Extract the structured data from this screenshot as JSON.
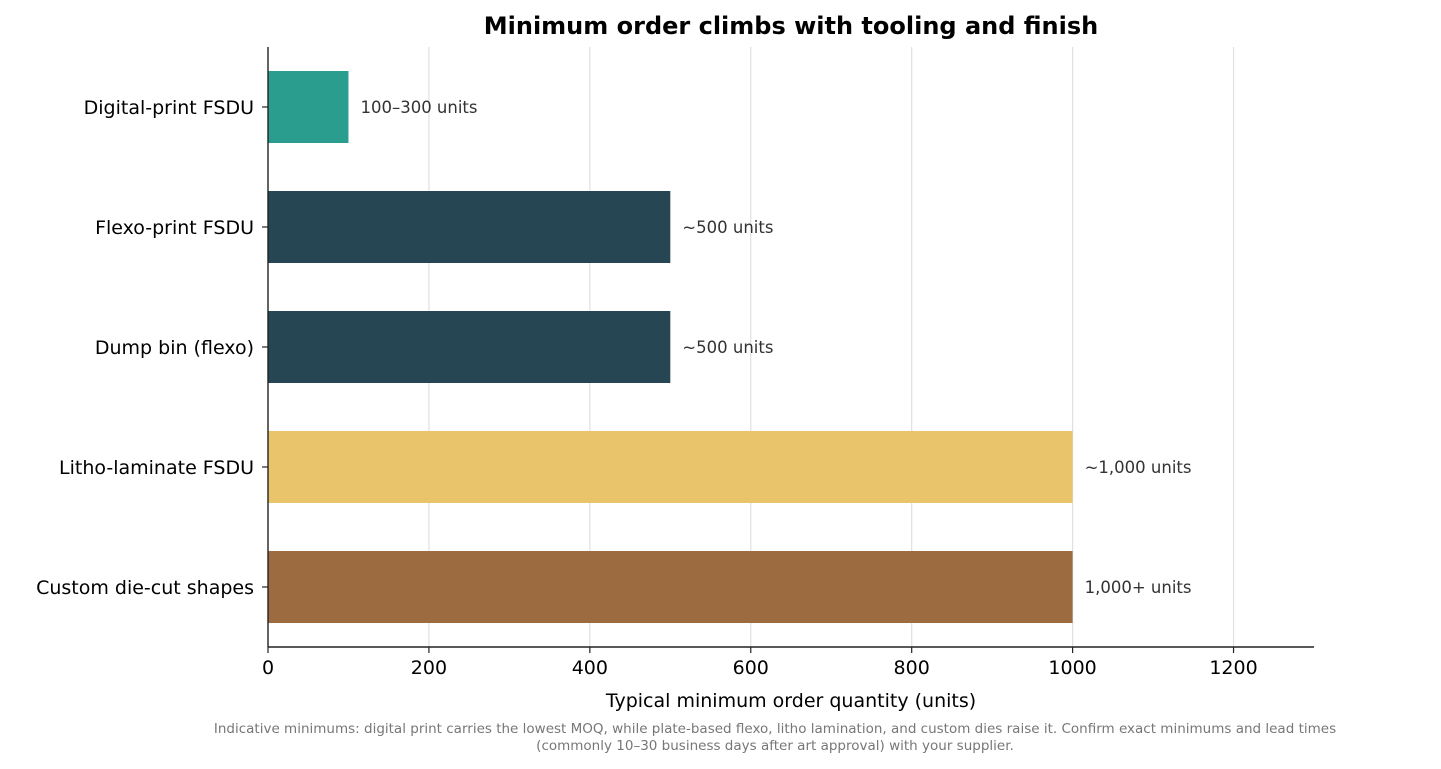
{
  "chart_data": {
    "type": "bar",
    "orientation": "horizontal",
    "title": "Minimum order climbs with tooling and finish",
    "xlabel": "Typical minimum order quantity (units)",
    "ylabel": "",
    "xlim": [
      0,
      1300
    ],
    "xticks": [
      0,
      200,
      400,
      600,
      800,
      1000,
      1200
    ],
    "grid": "vertical",
    "categories": [
      "Digital-print FSDU",
      "Flexo-print FSDU",
      "Dump bin (flexo)",
      "Litho-laminate FSDU",
      "Custom die-cut shapes"
    ],
    "values": [
      100,
      500,
      500,
      1000,
      1000
    ],
    "data_labels": [
      "100–300 units",
      "~500 units",
      "~500 units",
      "~1,000 units",
      "1,000+ units"
    ],
    "colors": [
      "#2a9d8f",
      "#264653",
      "#264653",
      "#e9c46a",
      "#9c6b40"
    ]
  },
  "footnote": {
    "line1": "Indicative minimums: digital print carries the lowest MOQ, while plate-based flexo, litho lamination, and custom dies raise it. Confirm exact minimums and lead times",
    "line2": "(commonly 10–30 business days after art approval) with your supplier."
  }
}
